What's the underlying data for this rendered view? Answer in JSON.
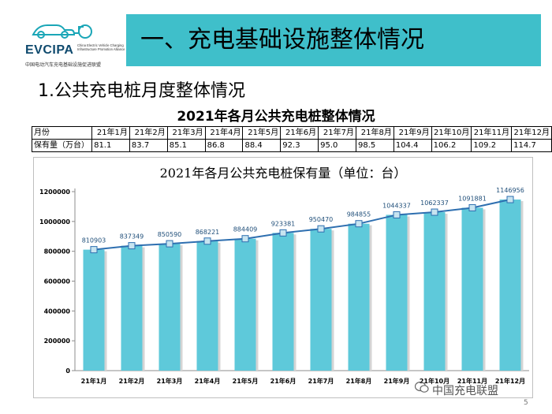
{
  "logo": {
    "name": "EVCIPA",
    "english": "China Electric Vehicle Charging Infrastructure Promotion Alliance",
    "chinese": "中国电动汽车充电基础设施促进联盟"
  },
  "header": {
    "title": "一、充电基础设施整体情况"
  },
  "section": {
    "title": "1.公共充电桩月度整体情况"
  },
  "table": {
    "title": "2021年各月公共充电桩整体情况",
    "row_labels": [
      "月份",
      "保有量（万台）"
    ],
    "months": [
      "21年1月",
      "21年2月",
      "21年3月",
      "21年4月",
      "21年5月",
      "21年6月",
      "21年7月",
      "21年8月",
      "21年9月",
      "21年10月",
      "21年11月",
      "21年12月"
    ],
    "values": [
      "81.1",
      "83.7",
      "85.1",
      "86.8",
      "88.4",
      "92.3",
      "95.0",
      "98.5",
      "104.4",
      "106.2",
      "109.2",
      "114.7"
    ]
  },
  "chart_data": {
    "type": "bar",
    "title": "2021年各月公共充电桩保有量（单位：台）",
    "categories": [
      "21年1月",
      "21年2月",
      "21年3月",
      "21年4月",
      "21年5月",
      "21年6月",
      "21年7月",
      "21年8月",
      "21年9月",
      "21年10月",
      "21年11月",
      "21年12月"
    ],
    "values": [
      810903,
      837349,
      850590,
      868221,
      884409,
      923381,
      950470,
      984855,
      1044337,
      1062337,
      1091881,
      1146956
    ],
    "overlay": "line with markers connecting bar tops",
    "y_ticks": [
      "0",
      "200000",
      "400000",
      "600000",
      "800000",
      "1000000",
      "1200000"
    ],
    "ylim": [
      0,
      1200000
    ],
    "grid": false,
    "legend": "none",
    "colors": {
      "bar": "#5ec9da",
      "line": "#2e6fb0",
      "marker": "#c7e4f0"
    }
  },
  "watermark": {
    "text": "中国充电联盟"
  },
  "page": {
    "number": "5"
  },
  "colors": {
    "title_bar": "#3fbfca"
  }
}
